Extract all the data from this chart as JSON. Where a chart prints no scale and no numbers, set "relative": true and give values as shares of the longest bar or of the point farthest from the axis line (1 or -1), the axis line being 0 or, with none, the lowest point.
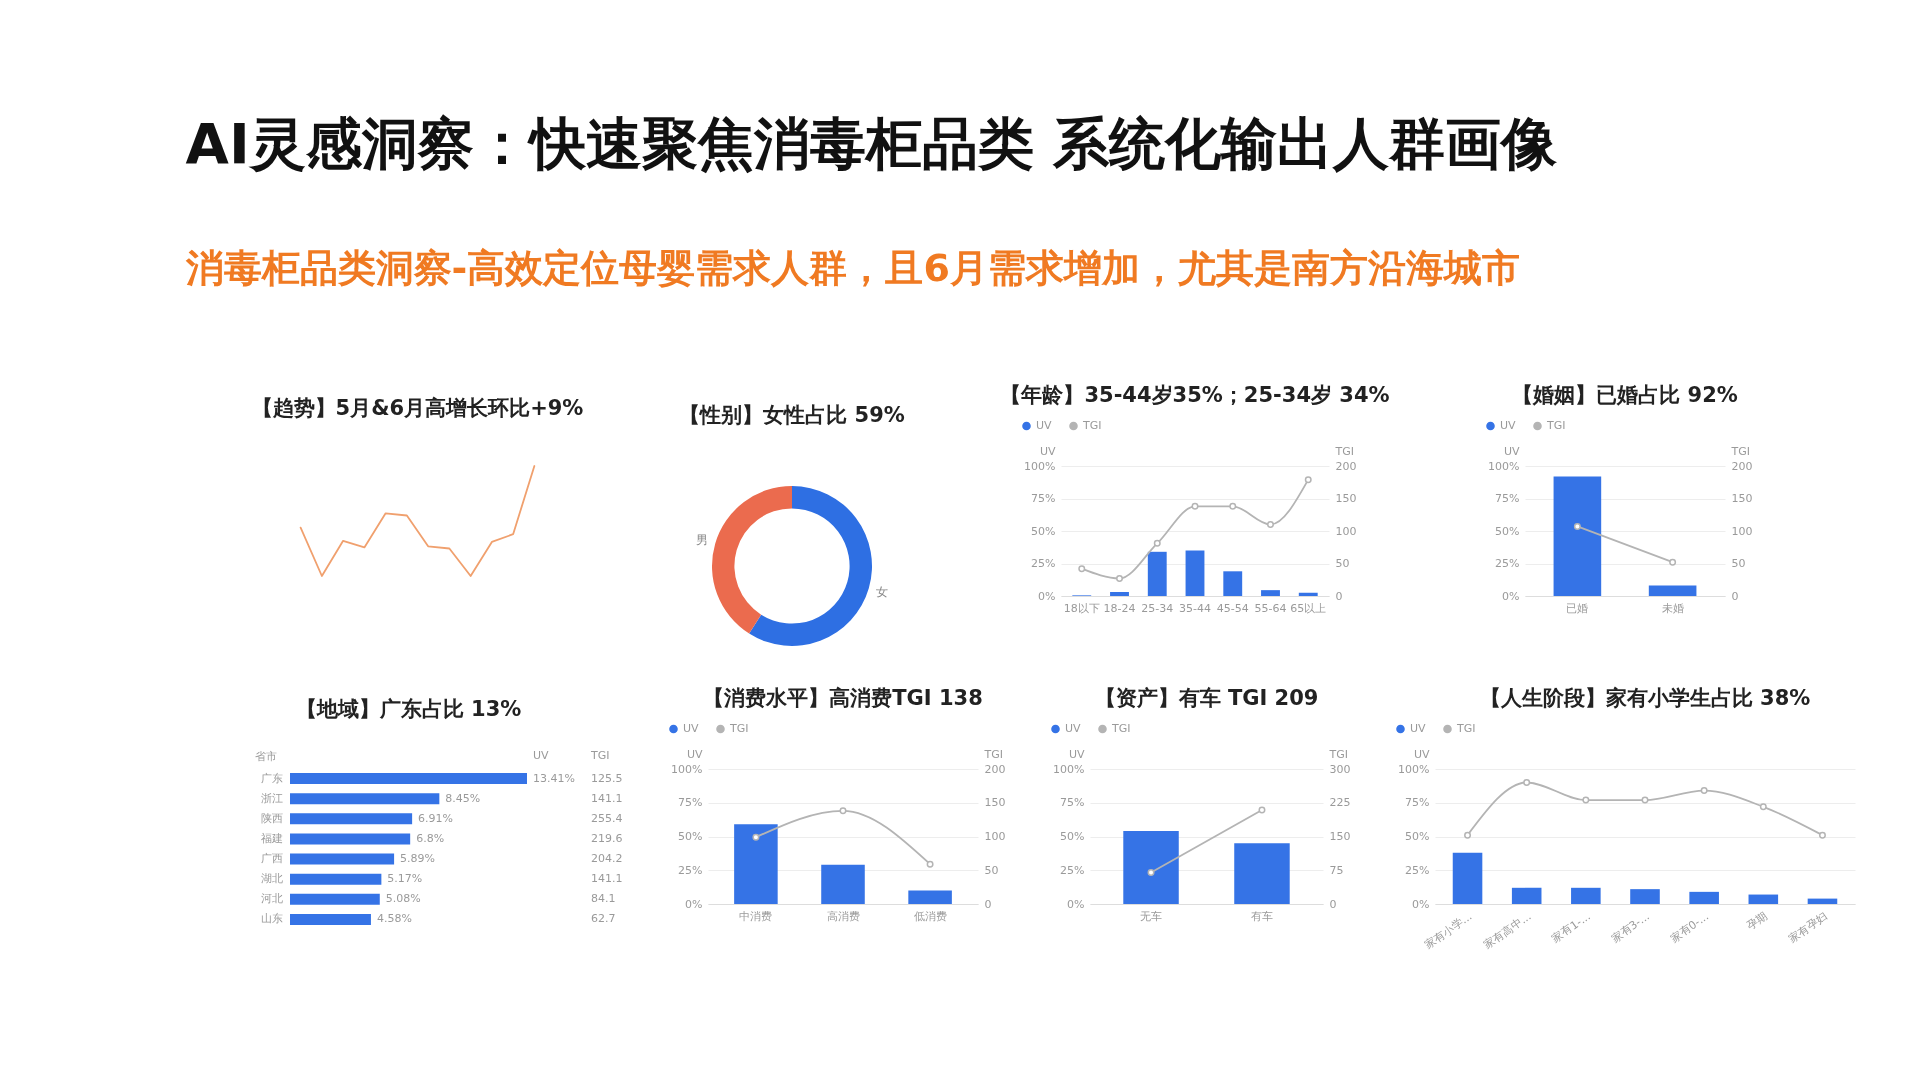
{
  "chart_data": [
    {
      "type": "other",
      "title": "AI灵感洞察：快速聚焦消毒柜品类 系统化输出人群画像",
      "subtitle": "消毒柜品类洞察-高效定位母婴需求人群，且6月需求增加，尤其是南方沿海城市"
    },
    {
      "type": "line",
      "title": "【趋势】5月&6月高增长环比+9%",
      "relative": true,
      "categories": [
        null,
        null,
        null,
        null,
        null,
        null,
        null,
        null,
        null,
        null,
        null,
        null
      ],
      "series": [
        {
          "color": "#f0a06e",
          "values": [
            0.44,
            0,
            0.32,
            0.26,
            0.57,
            0.55,
            0.27,
            0.25,
            0,
            0.31,
            0.38,
            1
          ]
        }
      ]
    },
    {
      "type": "donut",
      "title": "【性别】女性占比 59%",
      "categories": [
        "女",
        "男"
      ],
      "values": [
        59,
        41
      ],
      "colors": [
        "#2e6fe3",
        "#eb6b4e"
      ]
    },
    {
      "type": "bar",
      "title": "【年龄】35-44岁35%；25-34岁 34%",
      "categories": [
        "18以下",
        "18-24",
        "25-34",
        "35-44",
        "45-54",
        "55-64",
        "65以上"
      ],
      "series": [
        {
          "name": "UV",
          "color": "#3573e6",
          "values": [
            0.5,
            3,
            34,
            35,
            19,
            4.5,
            2.5
          ]
        },
        {
          "name": "TGI",
          "type": "line",
          "axis": "y2",
          "color": "#b4b4b4",
          "values": [
            42,
            27,
            81,
            138,
            138,
            110,
            179
          ]
        }
      ],
      "ylabel": "UV",
      "y2label": "TGI",
      "ylim": [
        0,
        100
      ],
      "yticks": [
        {
          "value": 0,
          "label": "0%"
        },
        {
          "value": 25,
          "label": "25%"
        },
        {
          "value": 50,
          "label": "50%"
        },
        {
          "value": 75,
          "label": "75%"
        },
        {
          "value": 100,
          "label": "100%"
        }
      ],
      "y2lim": [
        0,
        200
      ],
      "y2ticks": [
        0,
        50,
        100,
        150,
        200
      ],
      "grid": "y",
      "legend": "top left",
      "marker": "circle"
    },
    {
      "type": "bar",
      "title": "【婚姻】已婚占比 92%",
      "categories": [
        "已婚",
        "未婚"
      ],
      "series": [
        {
          "name": "UV",
          "color": "#3573e6",
          "values": [
            92,
            8
          ]
        },
        {
          "name": "TGI",
          "type": "line",
          "axis": "y2",
          "color": "#b4b4b4",
          "values": [
            107,
            52
          ]
        }
      ],
      "ylabel": "UV",
      "y2label": "TGI",
      "ylim": [
        0,
        100
      ],
      "yticks": [
        {
          "value": 0,
          "label": "0%"
        },
        {
          "value": 25,
          "label": "25%"
        },
        {
          "value": 50,
          "label": "50%"
        },
        {
          "value": 75,
          "label": "75%"
        },
        {
          "value": 100,
          "label": "100%"
        }
      ],
      "y2lim": [
        0,
        200
      ],
      "y2ticks": [
        0,
        50,
        100,
        150,
        200
      ],
      "grid": "y",
      "legend": "top left",
      "marker": "circle"
    },
    {
      "type": "bar",
      "orientation": "horizontal",
      "title": "【地域】广东占比 13%",
      "ylabel": "省市",
      "categories": [
        "广东",
        "浙江",
        "陕西",
        "福建",
        "广西",
        "湖北",
        "河北",
        "山东"
      ],
      "series": [
        {
          "name": "UV",
          "color": "#3573e6",
          "values": [
            13.41,
            8.45,
            6.91,
            6.8,
            5.89,
            5.17,
            5.08,
            4.58
          ],
          "value_labels": [
            "13.41%",
            "8.45%",
            "6.91%",
            "6.8%",
            "5.89%",
            "5.17%",
            "5.08%",
            "4.58%"
          ]
        }
      ],
      "annotations": [
        "TGI",
        "125.5",
        "141.1",
        "255.4",
        "219.6",
        "204.2",
        "141.1",
        "84.1",
        "62.7"
      ]
    },
    {
      "type": "bar",
      "title": "【消费水平】高消费TGI 138",
      "categories": [
        "中消费",
        "高消费",
        "低消费"
      ],
      "series": [
        {
          "name": "UV",
          "color": "#3573e6",
          "values": [
            59,
            29,
            10
          ]
        },
        {
          "name": "TGI",
          "type": "line",
          "axis": "y2",
          "color": "#b4b4b4",
          "values": [
            99,
            138,
            59
          ]
        }
      ],
      "ylabel": "UV",
      "y2label": "TGI",
      "ylim": [
        0,
        100
      ],
      "yticks": [
        {
          "value": 0,
          "label": "0%"
        },
        {
          "value": 25,
          "label": "25%"
        },
        {
          "value": 50,
          "label": "50%"
        },
        {
          "value": 75,
          "label": "75%"
        },
        {
          "value": 100,
          "label": "100%"
        }
      ],
      "y2lim": [
        0,
        200
      ],
      "y2ticks": [
        0,
        50,
        100,
        150,
        200
      ],
      "grid": "y",
      "legend": "top left",
      "marker": "circle"
    },
    {
      "type": "bar",
      "title": "【资产】有车 TGI 209",
      "categories": [
        "无车",
        "有车"
      ],
      "series": [
        {
          "name": "UV",
          "color": "#3573e6",
          "values": [
            54,
            45
          ]
        },
        {
          "name": "TGI",
          "type": "line",
          "axis": "y2",
          "color": "#b4b4b4",
          "values": [
            70,
            209
          ]
        }
      ],
      "ylabel": "UV",
      "y2label": "TGI",
      "ylim": [
        0,
        100
      ],
      "yticks": [
        {
          "value": 0,
          "label": "0%"
        },
        {
          "value": 25,
          "label": "25%"
        },
        {
          "value": 50,
          "label": "50%"
        },
        {
          "value": 75,
          "label": "75%"
        },
        {
          "value": 100,
          "label": "100%"
        }
      ],
      "y2lim": [
        0,
        300
      ],
      "y2ticks": [
        0,
        75,
        150,
        225,
        300
      ],
      "grid": "y",
      "legend": "top left",
      "marker": "circle"
    },
    {
      "type": "bar",
      "title": "【人生阶段】家有小学生占比 38%",
      "categories": [
        "家有小学...",
        "家有高中...",
        "家有1-...",
        "家有3-...",
        "家有0-...",
        "孕期",
        "家有孕妇"
      ],
      "series": [
        {
          "name": "UV",
          "color": "#3573e6",
          "values": [
            38,
            12,
            12,
            11,
            9,
            7,
            4
          ]
        },
        {
          "name": "TGI",
          "type": "line",
          "color": "#b4b4b4",
          "values": [
            51,
            90,
            77,
            77,
            84,
            72,
            51
          ]
        }
      ],
      "ylabel": "UV",
      "ylim": [
        0,
        100
      ],
      "yticks": [
        {
          "value": 0,
          "label": "0%"
        },
        {
          "value": 25,
          "label": "25%"
        },
        {
          "value": 50,
          "label": "50%"
        },
        {
          "value": 75,
          "label": "75%"
        },
        {
          "value": 100,
          "label": "100%"
        }
      ],
      "grid": "y",
      "legend": "top left",
      "marker": "circle"
    }
  ]
}
